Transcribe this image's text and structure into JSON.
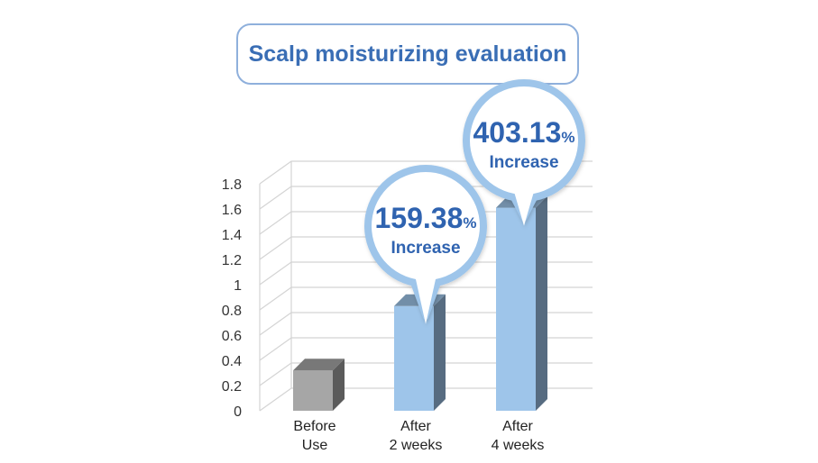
{
  "chart_data": {
    "type": "bar",
    "title": "Scalp moisturizing evaluation",
    "categories": [
      [
        "Before",
        "Use"
      ],
      [
        "After",
        "2 weeks"
      ],
      [
        "After",
        "4 weeks"
      ]
    ],
    "values": [
      0.32,
      0.83,
      1.61
    ],
    "ylim": [
      0,
      1.8
    ],
    "yticks": [
      "0",
      "0.2",
      "0.4",
      "0.6",
      "0.8",
      "1",
      "1.2",
      "1.4",
      "1.6",
      "1.8"
    ],
    "bar_colors": [
      "#a6a6a6",
      "#9ec5ea",
      "#9ec5ea"
    ],
    "grid": true,
    "annotations": [
      {
        "bar_index": 1,
        "value": "159.38",
        "unit": "%",
        "label": "Increase"
      },
      {
        "bar_index": 2,
        "value": "403.13",
        "unit": "%",
        "label": "Increase"
      }
    ]
  }
}
